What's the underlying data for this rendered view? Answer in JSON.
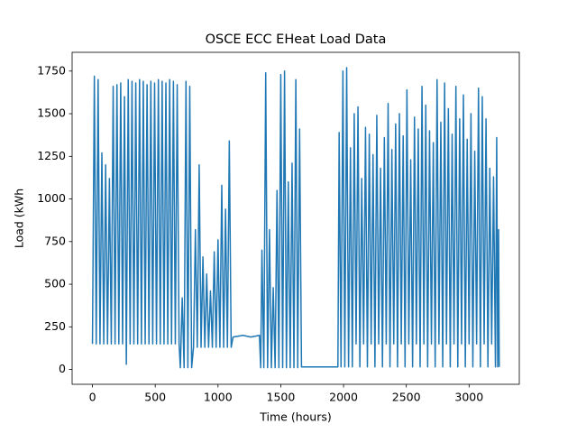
{
  "chart_data": {
    "type": "line",
    "title": "OSCE ECC EHeat Load Data",
    "x_label": "Time (hours)",
    "y_label": "Load (kWh",
    "xlim": [
      -162,
      3400
    ],
    "ylim": [
      -87,
      1860
    ],
    "xticks": [
      0,
      500,
      1000,
      1500,
      2000,
      2500,
      3000
    ],
    "yticks": [
      0,
      250,
      500,
      750,
      1000,
      1250,
      1500,
      1750
    ],
    "grid": false,
    "x": [
      0,
      15,
      30,
      45,
      60,
      75,
      90,
      105,
      120,
      135,
      150,
      165,
      180,
      195,
      210,
      225,
      240,
      255,
      270,
      285,
      300,
      315,
      330,
      345,
      360,
      375,
      390,
      405,
      420,
      435,
      450,
      465,
      480,
      495,
      510,
      525,
      540,
      555,
      570,
      585,
      600,
      615,
      630,
      645,
      660,
      675,
      690,
      700,
      715,
      730,
      745,
      760,
      775,
      790,
      805,
      820,
      835,
      850,
      865,
      880,
      895,
      910,
      925,
      940,
      955,
      970,
      985,
      1000,
      1015,
      1030,
      1045,
      1060,
      1075,
      1090,
      1105,
      1120,
      1200,
      1260,
      1330,
      1340,
      1350,
      1365,
      1380,
      1395,
      1410,
      1425,
      1440,
      1455,
      1470,
      1485,
      1500,
      1515,
      1530,
      1545,
      1560,
      1575,
      1590,
      1605,
      1620,
      1635,
      1650,
      1665,
      1800,
      1955,
      1965,
      1980,
      1995,
      2010,
      2025,
      2040,
      2055,
      2070,
      2085,
      2100,
      2115,
      2130,
      2145,
      2160,
      2175,
      2190,
      2205,
      2220,
      2235,
      2250,
      2265,
      2280,
      2295,
      2310,
      2325,
      2340,
      2355,
      2370,
      2385,
      2400,
      2415,
      2430,
      2445,
      2460,
      2475,
      2490,
      2505,
      2520,
      2535,
      2550,
      2565,
      2580,
      2595,
      2610,
      2625,
      2640,
      2655,
      2670,
      2685,
      2700,
      2715,
      2730,
      2745,
      2760,
      2775,
      2790,
      2805,
      2820,
      2835,
      2850,
      2865,
      2880,
      2895,
      2910,
      2925,
      2940,
      2955,
      2970,
      2985,
      3000,
      3015,
      3030,
      3045,
      3060,
      3075,
      3090,
      3105,
      3120,
      3135,
      3150,
      3165,
      3180,
      3195,
      3210,
      3220,
      3228,
      3235,
      3240
    ],
    "series": [
      {
        "color": "#1f77b4",
        "values": [
          150,
          1720,
          150,
          1700,
          150,
          1270,
          150,
          1200,
          150,
          1120,
          150,
          1660,
          150,
          1670,
          150,
          1680,
          150,
          1600,
          30,
          1700,
          150,
          1690,
          150,
          1680,
          150,
          1700,
          150,
          1690,
          150,
          1670,
          150,
          1690,
          150,
          1680,
          150,
          1700,
          150,
          1690,
          150,
          1680,
          150,
          1700,
          150,
          1690,
          150,
          1670,
          150,
          10,
          420,
          10,
          1690,
          10,
          1660,
          10,
          130,
          820,
          130,
          1200,
          130,
          660,
          130,
          560,
          130,
          460,
          130,
          690,
          130,
          760,
          130,
          1080,
          130,
          940,
          130,
          1340,
          130,
          190,
          200,
          190,
          200,
          10,
          700,
          10,
          1740,
          10,
          820,
          10,
          480,
          10,
          1050,
          10,
          1730,
          10,
          1750,
          10,
          1100,
          10,
          1210,
          10,
          1700,
          10,
          1410,
          15,
          15,
          15,
          1390,
          15,
          1750,
          15,
          1770,
          15,
          1300,
          15,
          1500,
          150,
          1540,
          15,
          1120,
          150,
          1420,
          15,
          1380,
          150,
          1260,
          15,
          1490,
          150,
          1180,
          15,
          1360,
          150,
          1560,
          15,
          1290,
          150,
          1440,
          15,
          1500,
          150,
          1370,
          15,
          1640,
          150,
          1230,
          15,
          1480,
          150,
          1410,
          15,
          1660,
          150,
          1550,
          15,
          1400,
          150,
          1330,
          15,
          1700,
          150,
          1450,
          15,
          1680,
          150,
          1530,
          15,
          1380,
          150,
          1660,
          15,
          1470,
          150,
          1610,
          15,
          1350,
          150,
          1500,
          15,
          1280,
          150,
          1650,
          15,
          1600,
          150,
          1470,
          15,
          1180,
          150,
          1130,
          15,
          1360,
          15,
          820,
          15
        ]
      }
    ]
  }
}
